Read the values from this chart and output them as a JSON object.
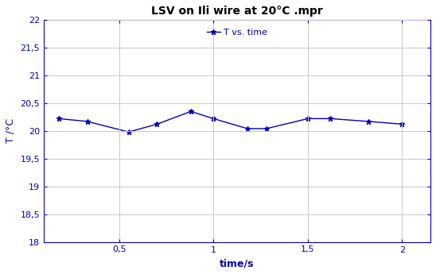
{
  "title": "LSV on Ili wire at 20°C .mpr",
  "xlabel": "time/s",
  "ylabel": "T /°C",
  "legend_label": "T vs. time",
  "line_color": "#0000bb",
  "marker": "*",
  "background_color": "#ffffff",
  "plot_bg_color": "#ffffff",
  "grid_color": "#c8c8c8",
  "spine_color": "#0000bb",
  "tick_color": "#0000bb",
  "label_color": "#0000bb",
  "title_color": "#000000",
  "xlim": [
    0.1,
    2.15
  ],
  "ylim": [
    18,
    22
  ],
  "yticks": [
    18,
    18.5,
    19,
    19.5,
    20,
    20.5,
    21,
    21.5,
    22
  ],
  "xticks": [
    0.5,
    1.0,
    1.5,
    2.0
  ],
  "x": [
    0.18,
    0.33,
    0.55,
    0.7,
    0.88,
    1.0,
    1.18,
    1.28,
    1.5,
    1.62,
    1.82,
    2.0
  ],
  "y": [
    20.22,
    20.17,
    19.98,
    20.12,
    20.35,
    20.22,
    20.04,
    20.04,
    20.22,
    20.22,
    20.17,
    20.12
  ],
  "title_fontsize": 10,
  "label_fontsize": 9,
  "tick_fontsize": 8,
  "legend_fontsize": 8,
  "figsize": [
    5.48,
    3.45
  ],
  "dpi": 100
}
